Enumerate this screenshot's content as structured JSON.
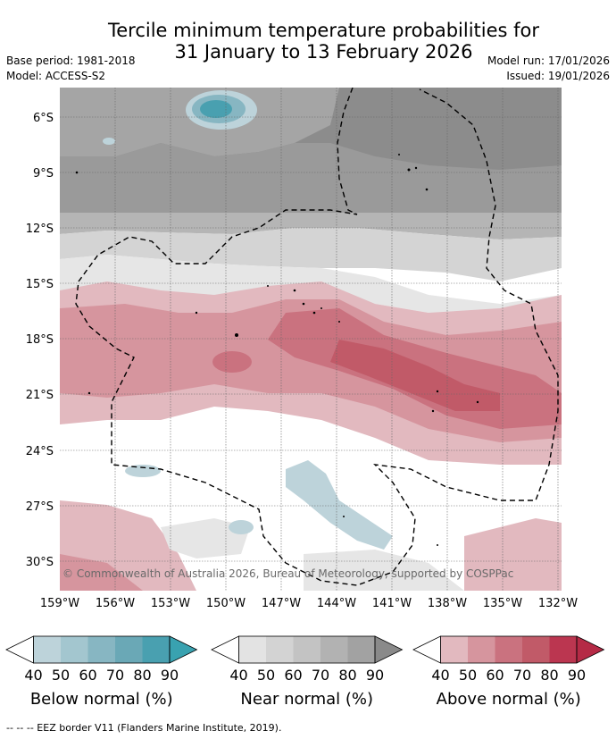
{
  "title_line1": "Tercile minimum temperature probabilities for",
  "title_line2": "31 January to 13 February 2026",
  "base_period": "Base period: 1981-2018",
  "model": "Model: ACCESS-S2",
  "model_run": "Model run: 17/01/2026",
  "issued": "Issued: 19/01/2026",
  "copyright": "© Commonwealth of Australia 2026, Bureau of Meteorology, supported by COSPPac",
  "lat_labels": [
    "6°S",
    "9°S",
    "12°S",
    "15°S",
    "18°S",
    "21°S",
    "24°S",
    "27°S",
    "30°S"
  ],
  "lon_labels": [
    "159°W",
    "156°W",
    "153°W",
    "150°W",
    "147°W",
    "144°W",
    "141°W",
    "138°W",
    "135°W",
    "132°W"
  ],
  "legends": [
    {
      "name": "below",
      "title": "Below normal (%)",
      "ticks": [
        "40",
        "50",
        "60",
        "70",
        "80",
        "90"
      ],
      "colors": [
        "#ffffff",
        "#bdd3da",
        "#a3c6cf",
        "#87b6c2",
        "#6aa8b6",
        "#49a0b0",
        "#39a2b0"
      ]
    },
    {
      "name": "near",
      "title": "Near normal (%)",
      "ticks": [
        "40",
        "50",
        "60",
        "70",
        "80",
        "90"
      ],
      "colors": [
        "#ffffff",
        "#e3e3e3",
        "#d3d3d3",
        "#c3c3c3",
        "#b2b2b2",
        "#a2a2a2",
        "#8a8a8a"
      ]
    },
    {
      "name": "above",
      "title": "Above normal (%)",
      "ticks": [
        "40",
        "50",
        "60",
        "70",
        "80",
        "90"
      ],
      "colors": [
        "#ffffff",
        "#e2b9bf",
        "#d6959e",
        "#ca727f",
        "#c15a68",
        "#bb3650",
        "#b52a46"
      ]
    }
  ],
  "footnote": "--  --  -- EEZ border V11 (Flanders Marine Institute, 2019)."
}
